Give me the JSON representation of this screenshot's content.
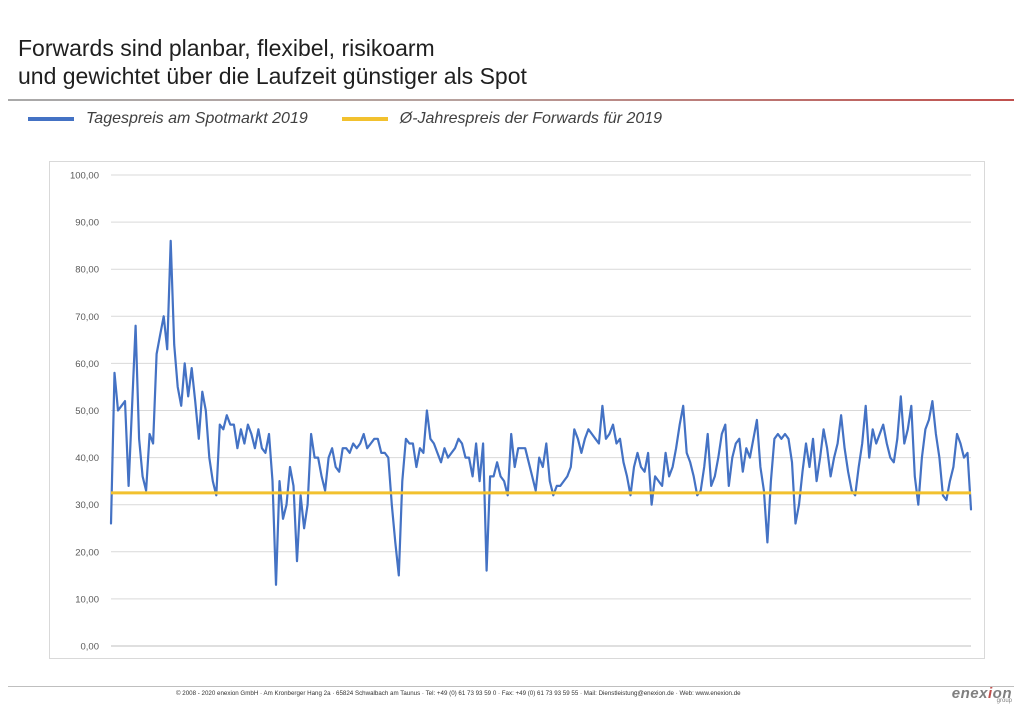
{
  "header": {
    "title_line1": "Forwards sind planbar, flexibel, risikoarm",
    "title_line2": "und gewichtet über die Laufzeit günstiger als Spot"
  },
  "legend": [
    {
      "label": "Tagespreis am Spotmarkt 2019",
      "color": "#4472c4"
    },
    {
      "label": "Ø-Jahrespreis der Forwards für 2019",
      "color": "#f2c12e"
    }
  ],
  "chart_data": {
    "type": "line",
    "title": "",
    "xlabel": "",
    "ylabel": "",
    "ylim": [
      0,
      100
    ],
    "yticks": [
      "0,00",
      "10,00",
      "20,00",
      "30,00",
      "40,00",
      "50,00",
      "60,00",
      "70,00",
      "80,00",
      "90,00",
      "100,00"
    ],
    "grid": true,
    "series": [
      {
        "name": "Tagespreis am Spotmarkt 2019",
        "color": "#4472c4",
        "values": [
          26,
          58,
          50,
          51,
          52,
          34,
          51,
          68,
          44,
          36,
          33,
          45,
          43,
          62,
          66,
          70,
          63,
          86,
          64,
          55,
          51,
          60,
          53,
          59,
          52,
          44,
          54,
          50,
          40,
          35,
          32,
          47,
          46,
          49,
          47,
          47,
          42,
          46,
          43,
          47,
          45,
          42,
          46,
          42,
          41,
          45,
          35,
          13,
          35,
          27,
          30,
          38,
          34,
          18,
          32,
          25,
          30,
          45,
          40,
          40,
          36,
          33,
          40,
          42,
          38,
          37,
          42,
          42,
          41,
          43,
          42,
          43,
          45,
          42,
          43,
          44,
          44,
          41,
          41,
          40,
          30,
          22,
          15,
          35,
          44,
          43,
          43,
          38,
          42,
          41,
          50,
          44,
          43,
          41,
          39,
          42,
          40,
          41,
          42,
          44,
          43,
          40,
          40,
          36,
          43,
          35,
          43,
          16,
          36,
          36,
          39,
          36,
          35,
          32,
          45,
          38,
          42,
          42,
          42,
          39,
          36,
          33,
          40,
          38,
          43,
          35,
          32,
          34,
          34,
          35,
          36,
          38,
          46,
          44,
          41,
          44,
          46,
          45,
          44,
          43,
          51,
          44,
          45,
          47,
          43,
          44,
          39,
          36,
          32,
          38,
          41,
          38,
          37,
          41,
          30,
          36,
          35,
          34,
          41,
          36,
          38,
          42,
          47,
          51,
          41,
          39,
          36,
          32,
          33,
          38,
          45,
          34,
          36,
          40,
          45,
          47,
          34,
          40,
          43,
          44,
          37,
          42,
          40,
          44,
          48,
          38,
          33,
          22,
          35,
          44,
          45,
          44,
          45,
          44,
          39,
          26,
          30,
          37,
          43,
          38,
          44,
          35,
          40,
          46,
          42,
          36,
          40,
          43,
          49,
          42,
          37,
          33,
          32,
          38,
          43,
          51,
          40,
          46,
          43,
          45,
          47,
          43,
          40,
          39,
          44,
          53,
          43,
          46,
          51,
          36,
          30,
          40,
          46,
          48,
          52,
          45,
          40,
          32,
          31,
          35,
          38,
          45,
          43,
          40,
          41,
          29
        ]
      },
      {
        "name": "Ø-Jahrespreis der Forwards für 2019",
        "color": "#f2c12e",
        "values": [
          32.5,
          32.5
        ]
      }
    ]
  },
  "footer": {
    "text": "© 2008 - 2020 enexion GmbH · Am Kronberger Hang 2a · 65824 Schwalbach am Taunus · Tel: +49 (0) 61 73 93 59 0 · Fax: +49 (0) 61 73 93 59 55 · Mail: Dienstleistung@enexion.de · Web: www.enexion.de"
  },
  "logo": {
    "part1": "enex",
    "accent": "i",
    "part2": "on",
    "sub": "group"
  }
}
